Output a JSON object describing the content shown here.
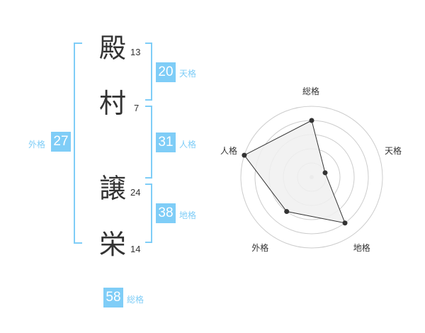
{
  "name": {
    "characters": [
      {
        "char": "殿",
        "strokes": "13"
      },
      {
        "char": "村",
        "strokes": "7"
      },
      {
        "char": "譲",
        "strokes": "24"
      },
      {
        "char": "栄",
        "strokes": "14"
      }
    ]
  },
  "kaku": {
    "tenkaku": {
      "value": "20",
      "label": "天格"
    },
    "jinkaku": {
      "value": "31",
      "label": "人格"
    },
    "chikaku": {
      "value": "38",
      "label": "地格"
    },
    "gaikaku": {
      "value": "27",
      "label": "外格"
    },
    "soukaku": {
      "value": "58",
      "label": "総格"
    }
  },
  "colors": {
    "accent": "#7fcdf7",
    "text": "#333333",
    "fill": "#f0f0f0",
    "ring": "#cccccc"
  },
  "chart_data": {
    "type": "radar",
    "axes": [
      "総格",
      "天格",
      "地格",
      "外格",
      "人格"
    ],
    "values": [
      4,
      1,
      4,
      3,
      5
    ],
    "range": [
      0,
      5
    ],
    "rings": 5
  }
}
